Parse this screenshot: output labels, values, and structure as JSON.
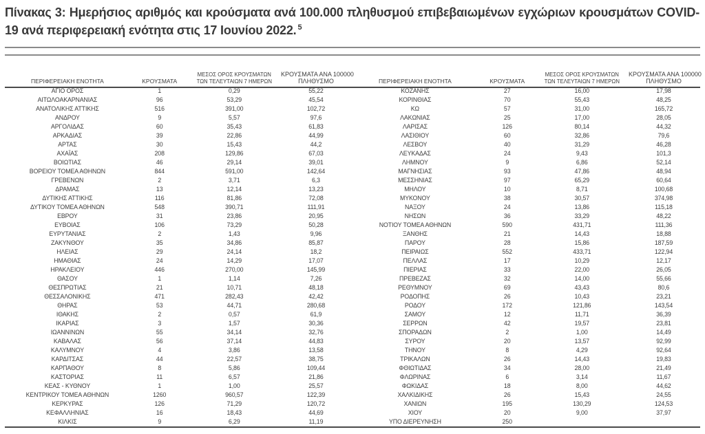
{
  "title": {
    "text": "Πίνακας 3:  Ημερήσιος αριθμός και κρούσματα ανά 100.000 πληθυσμού επιβεβαιωμένων εγχώριων κρουσμάτων COVID-19 ανά περιφερειακή ενότητα στις 17 Ιουνίου 2022.",
    "footnote_ref": "5"
  },
  "colors": {
    "text": "#3d3d3d",
    "rule_gray": "#8a8a8a",
    "rule_dark": "#4a4a4a",
    "background": "#ffffff"
  },
  "columns": [
    {
      "lines": [
        "ΠΕΡΙΦΕΡΕΙΑΚΗ ΕΝΟΤΗΤΑ"
      ]
    },
    {
      "lines": [
        "ΚΡΟΥΣΜΑΤΑ"
      ]
    },
    {
      "lines": [
        "ΜΕΣΟΣ ΟΡΟΣ ΚΡΟΥΣΜΑΤΩΝ",
        "ΤΩΝ ΤΕΛΕΥΤΑΙΩΝ 7 ΗΜΕΡΩΝ"
      ]
    },
    {
      "lines": [
        "ΚΡΟΥΣΜΑΤΑ ΑΝΑ 100000",
        "ΠΛΗΘΥΣΜΟ"
      ]
    }
  ],
  "tables": [
    {
      "rows": [
        [
          "ΑΓΙΟ ΟΡΟΣ",
          "1",
          "0,29",
          "55,22"
        ],
        [
          "ΑΙΤΩΛΟΑΚΑΡΝΑΝΙΑΣ",
          "96",
          "53,29",
          "45,54"
        ],
        [
          "ΑΝΑΤΟΛΙΚΗΣ ΑΤΤΙΚΗΣ",
          "516",
          "391,00",
          "102,72"
        ],
        [
          "ΑΝΔΡΟΥ",
          "9",
          "5,57",
          "97,6"
        ],
        [
          "ΑΡΓΟΛΙΔΑΣ",
          "60",
          "35,43",
          "61,83"
        ],
        [
          "ΑΡΚΑΔΙΑΣ",
          "39",
          "22,86",
          "44,99"
        ],
        [
          "ΑΡΤΑΣ",
          "30",
          "15,43",
          "44,2"
        ],
        [
          "ΑΧΑΪΑΣ",
          "208",
          "129,86",
          "67,03"
        ],
        [
          "ΒΟΙΩΤΙΑΣ",
          "46",
          "29,14",
          "39,01"
        ],
        [
          "ΒΟΡΕΙΟΥ ΤΟΜΕΑ ΑΘΗΝΩΝ",
          "844",
          "591,00",
          "142,64"
        ],
        [
          "ΓΡΕΒΕΝΩΝ",
          "2",
          "3,71",
          "6,3"
        ],
        [
          "ΔΡΑΜΑΣ",
          "13",
          "12,14",
          "13,23"
        ],
        [
          "ΔΥΤΙΚΗΣ ΑΤΤΙΚΗΣ",
          "116",
          "81,86",
          "72,08"
        ],
        [
          "ΔΥΤΙΚΟΥ ΤΟΜΕΑ ΑΘΗΝΩΝ",
          "548",
          "390,71",
          "111,91"
        ],
        [
          "ΕΒΡΟΥ",
          "31",
          "23,86",
          "20,95"
        ],
        [
          "ΕΥΒΟΙΑΣ",
          "106",
          "73,29",
          "50,28"
        ],
        [
          "ΕΥΡΥΤΑΝΙΑΣ",
          "2",
          "1,43",
          "9,96"
        ],
        [
          "ΖΑΚΥΝΘΟΥ",
          "35",
          "34,86",
          "85,87"
        ],
        [
          "ΗΛΕΙΑΣ",
          "29",
          "24,14",
          "18,2"
        ],
        [
          "ΗΜΑΘΙΑΣ",
          "24",
          "14,29",
          "17,07"
        ],
        [
          "ΗΡΑΚΛΕΙΟΥ",
          "446",
          "270,00",
          "145,99"
        ],
        [
          "ΘΑΣΟΥ",
          "1",
          "1,14",
          "7,26"
        ],
        [
          "ΘΕΣΠΡΩΤΙΑΣ",
          "21",
          "10,71",
          "48,18"
        ],
        [
          "ΘΕΣΣΑΛΟΝΙΚΗΣ",
          "471",
          "282,43",
          "42,42"
        ],
        [
          "ΘΗΡΑΣ",
          "53",
          "44,71",
          "280,68"
        ],
        [
          "ΙΘΑΚΗΣ",
          "2",
          "0,57",
          "61,9"
        ],
        [
          "ΙΚΑΡΙΑΣ",
          "3",
          "1,57",
          "30,36"
        ],
        [
          "ΙΩΑΝΝΙΝΩΝ",
          "55",
          "34,14",
          "32,76"
        ],
        [
          "ΚΑΒΑΛΑΣ",
          "56",
          "37,14",
          "44,83"
        ],
        [
          "ΚΑΛΥΜΝΟΥ",
          "4",
          "3,86",
          "13,58"
        ],
        [
          "ΚΑΡΔΙΤΣΑΣ",
          "44",
          "22,57",
          "38,75"
        ],
        [
          "ΚΑΡΠΑΘΟΥ",
          "8",
          "5,86",
          "109,44"
        ],
        [
          "ΚΑΣΤΟΡΙΑΣ",
          "11",
          "6,57",
          "21,86"
        ],
        [
          "ΚΕΑΣ - ΚΥΘΝΟΥ",
          "1",
          "1,00",
          "25,57"
        ],
        [
          "ΚΕΝΤΡΙΚΟΥ ΤΟΜΕΑ ΑΘΗΝΩΝ",
          "1260",
          "960,57",
          "122,39"
        ],
        [
          "ΚΕΡΚΥΡΑΣ",
          "126",
          "71,29",
          "120,72"
        ],
        [
          "ΚΕΦΑΛΛΗΝΙΑΣ",
          "16",
          "18,43",
          "44,69"
        ],
        [
          "ΚΙΛΚΙΣ",
          "9",
          "6,29",
          "11,19"
        ]
      ]
    },
    {
      "rows": [
        [
          "ΚΟΖΑΝΗΣ",
          "27",
          "16,00",
          "17,98"
        ],
        [
          "ΚΟΡΙΝΘΙΑΣ",
          "70",
          "55,43",
          "48,25"
        ],
        [
          "ΚΩ",
          "57",
          "31,00",
          "165,72"
        ],
        [
          "ΛΑΚΩΝΙΑΣ",
          "25",
          "17,00",
          "28,05"
        ],
        [
          "ΛΑΡΙΣΑΣ",
          "126",
          "80,14",
          "44,32"
        ],
        [
          "ΛΑΣΙΘΙΟΥ",
          "60",
          "32,86",
          "79,6"
        ],
        [
          "ΛΕΣΒΟΥ",
          "40",
          "31,29",
          "46,28"
        ],
        [
          "ΛΕΥΚΑΔΑΣ",
          "24",
          "9,43",
          "101,3"
        ],
        [
          "ΛΗΜΝΟΥ",
          "9",
          "6,86",
          "52,14"
        ],
        [
          "ΜΑΓΝΗΣΙΑΣ",
          "93",
          "47,86",
          "48,94"
        ],
        [
          "ΜΕΣΣΗΝΙΑΣ",
          "97",
          "65,29",
          "60,64"
        ],
        [
          "ΜΗΛΟΥ",
          "10",
          "8,71",
          "100,68"
        ],
        [
          "ΜΥΚΟΝΟΥ",
          "38",
          "30,57",
          "374,98"
        ],
        [
          "ΝΑΞΟΥ",
          "24",
          "13,86",
          "115,18"
        ],
        [
          "ΝΗΣΩΝ",
          "36",
          "33,29",
          "48,22"
        ],
        [
          "ΝΟΤΙΟΥ ΤΟΜΕΑ ΑΘΗΝΩΝ",
          "590",
          "431,71",
          "111,36"
        ],
        [
          "ΞΑΝΘΗΣ",
          "21",
          "14,43",
          "18,88"
        ],
        [
          "ΠΑΡΟΥ",
          "28",
          "15,86",
          "187,59"
        ],
        [
          "ΠΕΙΡΑΙΩΣ",
          "552",
          "433,71",
          "122,94"
        ],
        [
          "ΠΕΛΛΑΣ",
          "17",
          "10,29",
          "12,17"
        ],
        [
          "ΠΙΕΡΙΑΣ",
          "33",
          "22,00",
          "26,05"
        ],
        [
          "ΠΡΕΒΕΖΑΣ",
          "32",
          "14,00",
          "55,66"
        ],
        [
          "ΡΕΘΥΜΝΟΥ",
          "69",
          "43,43",
          "80,6"
        ],
        [
          "ΡΟΔΟΠΗΣ",
          "26",
          "10,43",
          "23,21"
        ],
        [
          "ΡΟΔΟΥ",
          "172",
          "121,86",
          "143,54"
        ],
        [
          "ΣΑΜΟΥ",
          "12",
          "11,71",
          "36,39"
        ],
        [
          "ΣΕΡΡΩΝ",
          "42",
          "19,57",
          "23,81"
        ],
        [
          "ΣΠΟΡΑΔΩΝ",
          "2",
          "1,00",
          "14,49"
        ],
        [
          "ΣΥΡΟΥ",
          "20",
          "13,57",
          "92,99"
        ],
        [
          "ΤΗΝΟΥ",
          "8",
          "4,29",
          "92,64"
        ],
        [
          "ΤΡΙΚΑΛΩΝ",
          "26",
          "14,43",
          "19,83"
        ],
        [
          "ΦΘΙΩΤΙΔΑΣ",
          "34",
          "28,00",
          "21,49"
        ],
        [
          "ΦΛΩΡΙΝΑΣ",
          "6",
          "3,14",
          "11,67"
        ],
        [
          "ΦΩΚΙΔΑΣ",
          "18",
          "8,00",
          "44,62"
        ],
        [
          "ΧΑΛΚΙΔΙΚΗΣ",
          "26",
          "15,43",
          "24,55"
        ],
        [
          "ΧΑΝΙΩΝ",
          "195",
          "130,29",
          "124,53"
        ],
        [
          "ΧΙΟΥ",
          "20",
          "9,00",
          "37,97"
        ],
        [
          "ΥΠΟ ΔΙΕΡΕΥΝΗΣΗ",
          "250",
          "",
          ""
        ]
      ]
    }
  ]
}
